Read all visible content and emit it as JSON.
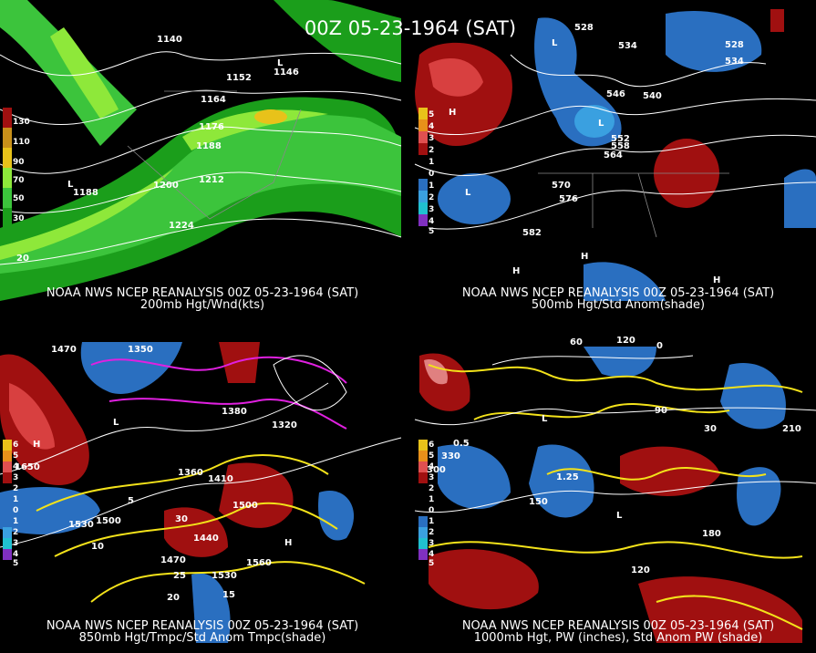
{
  "title": "00Z 05-23-1964 (SAT)",
  "panels": [
    {
      "caption": [
        "NOAA NWS NCEP REANALYSIS 00Z 05-23-1964 (SAT)",
        "200mb Hgt/Wnd(kts)"
      ],
      "colorbar": [
        "130",
        "110",
        "90",
        "70",
        "50",
        "30"
      ],
      "labels": [
        "1140",
        "1152",
        "1146",
        "1164",
        "1176",
        "1188",
        "1200",
        "1212",
        "1224",
        "1188",
        "20",
        "L",
        "L"
      ]
    },
    {
      "caption": [
        "NOAA NWS NCEP REANALYSIS 00Z 05-23-1964 (SAT)",
        "500mb Hgt/Std Anom(shade)"
      ],
      "colorbar": [
        "5",
        "4",
        "3",
        "2",
        "1",
        "0",
        "1",
        "2",
        "3",
        "4",
        "5"
      ],
      "labels": [
        "528",
        "534",
        "528",
        "534",
        "546",
        "540",
        "552",
        "558",
        "564",
        "570",
        "576",
        "582",
        "H",
        "L",
        "L",
        "L",
        "H",
        "H",
        "H"
      ]
    },
    {
      "caption": [
        "NOAA NWS NCEP REANALYSIS 00Z 05-23-1964 (SAT)",
        "850mb Hgt/Tmpc/Std Anom Tmpc(shade)"
      ],
      "colorbar": [
        "6",
        "5",
        "4",
        "3",
        "2",
        "1",
        "0",
        "1",
        "2",
        "3",
        "4",
        "5"
      ],
      "labels": [
        "1470",
        "1350",
        "1320",
        "1380",
        "1410",
        "1360",
        "1650",
        "1530",
        "1500",
        "1440",
        "1500",
        "1560",
        "1470",
        "1530",
        "5",
        "10",
        "15",
        "20",
        "25",
        "30",
        "H",
        "L",
        "H"
      ]
    },
    {
      "caption": [
        "NOAA NWS NCEP REANALYSIS 00Z 05-23-1964 (SAT)",
        "1000mb Hgt, PW (inches), Std Anom PW (shade)"
      ],
      "colorbar": [
        "6",
        "5",
        "4",
        "3",
        "2",
        "1",
        "0",
        "1",
        "2",
        "3",
        "4",
        "5"
      ],
      "labels": [
        "120",
        "60",
        "0",
        "90",
        "30",
        "210",
        "150",
        "180",
        "0.5",
        "1.25",
        "330",
        "300",
        "120",
        "L",
        "L"
      ]
    }
  ]
}
